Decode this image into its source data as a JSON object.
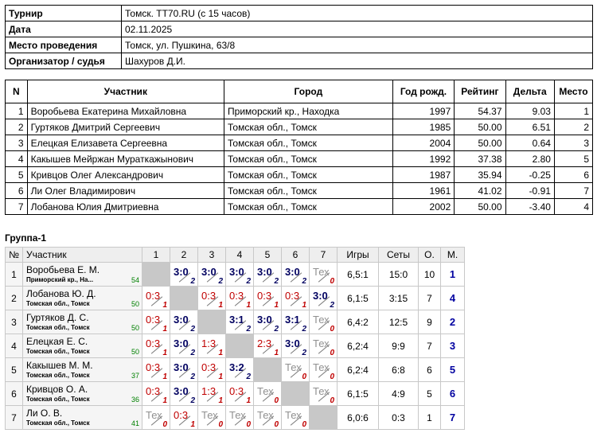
{
  "info": {
    "rows": [
      {
        "label": "Турнир",
        "value": "Томск. TT70.RU (с 15 часов)"
      },
      {
        "label": "Дата",
        "value": "02.11.2025"
      },
      {
        "label": "Место проведения",
        "value": "Томск, ул. Пушкина, 63/8"
      },
      {
        "label": "Организатор / судья",
        "value": "Шахуров Д.И."
      }
    ]
  },
  "participants": {
    "headers": [
      "N",
      "Участник",
      "Город",
      "Год рожд.",
      "Рейтинг",
      "Дельта",
      "Место"
    ],
    "rows": [
      {
        "n": "1",
        "name": "Воробьева Екатерина Михайловна",
        "city": "Приморский кр., Находка",
        "year": "1997",
        "rating": "54.37",
        "delta": "9.03",
        "place": "1"
      },
      {
        "n": "2",
        "name": "Гуртяков Дмитрий Сергеевич",
        "city": "Томская обл., Томск",
        "year": "1985",
        "rating": "50.00",
        "delta": "6.51",
        "place": "2"
      },
      {
        "n": "3",
        "name": "Елецкая Елизавета Сергеевна",
        "city": "Томская обл., Томск",
        "year": "2004",
        "rating": "50.00",
        "delta": "0.64",
        "place": "3"
      },
      {
        "n": "4",
        "name": "Какышев Мейржан Мураткажынович",
        "city": "Томская обл., Томск",
        "year": "1992",
        "rating": "37.38",
        "delta": "2.80",
        "place": "5"
      },
      {
        "n": "5",
        "name": "Кривцов Олег Александрович",
        "city": "Томская обл., Томск",
        "year": "1987",
        "rating": "35.94",
        "delta": "-0.25",
        "place": "6"
      },
      {
        "n": "6",
        "name": "Ли Олег Владимирович",
        "city": "Томская обл., Томск",
        "year": "1961",
        "rating": "41.02",
        "delta": "-0.91",
        "place": "7"
      },
      {
        "n": "7",
        "name": "Лобанова Юлия Дмитриевна",
        "city": "Томская обл., Томск",
        "year": "2002",
        "rating": "50.00",
        "delta": "-3.40",
        "place": "4"
      }
    ]
  },
  "group": {
    "title": "Группа-1",
    "headers": [
      "№",
      "Участник",
      "1",
      "2",
      "3",
      "4",
      "5",
      "6",
      "7",
      "Игры",
      "Сеты",
      "О.",
      "М."
    ],
    "rows": [
      {
        "n": "1",
        "name": "Воробьева Е. М.",
        "city": "Приморский кр., На...",
        "rating": "54",
        "cells": [
          "",
          "3:0|2",
          "3:0|2",
          "3:0|2",
          "3:0|2",
          "3:0|2",
          "Тех|0"
        ],
        "games": "6,5:1",
        "sets": "15:0",
        "points": "10",
        "place": "1"
      },
      {
        "n": "2",
        "name": "Лобанова Ю. Д.",
        "city": "Томская обл., Томск",
        "rating": "50",
        "cells": [
          "0:3|1",
          "",
          "0:3|1",
          "0:3|1",
          "0:3|1",
          "0:3|1",
          "3:0|2"
        ],
        "games": "6,1:5",
        "sets": "3:15",
        "points": "7",
        "place": "4"
      },
      {
        "n": "3",
        "name": "Гуртяков Д. С.",
        "city": "Томская обл., Томск",
        "rating": "50",
        "cells": [
          "0:3|1",
          "3:0|2",
          "",
          "3:1|2",
          "3:0|2",
          "3:1|2",
          "Тех|0"
        ],
        "games": "6,4:2",
        "sets": "12:5",
        "points": "9",
        "place": "2"
      },
      {
        "n": "4",
        "name": "Елецкая Е. С.",
        "city": "Томская обл., Томск",
        "rating": "50",
        "cells": [
          "0:3|1",
          "3:0|2",
          "1:3|1",
          "",
          "2:3|1",
          "3:0|2",
          "Тех|0"
        ],
        "games": "6,2:4",
        "sets": "9:9",
        "points": "7",
        "place": "3"
      },
      {
        "n": "5",
        "name": "Какышев М. М.",
        "city": "Томская обл., Томск",
        "rating": "37",
        "cells": [
          "0:3|1",
          "3:0|2",
          "0:3|1",
          "3:2|2",
          "",
          "Тех|0",
          "Тех|0"
        ],
        "games": "6,2:4",
        "sets": "6:8",
        "points": "6",
        "place": "5"
      },
      {
        "n": "6",
        "name": "Кривцов О. А.",
        "city": "Томская обл., Томск",
        "rating": "36",
        "cells": [
          "0:3|1",
          "3:0|2",
          "1:3|1",
          "0:3|1",
          "Тех|0",
          "",
          "Тех|0"
        ],
        "games": "6,1:5",
        "sets": "4:9",
        "points": "5",
        "place": "6"
      },
      {
        "n": "7",
        "name": "Ли О. В.",
        "city": "Томская обл., Томск",
        "rating": "41",
        "cells": [
          "Тех|0",
          "0:3|1",
          "Тех|0",
          "Тех|0",
          "Тех|0",
          "Тех|0",
          ""
        ],
        "games": "6,0:6",
        "sets": "0:3",
        "points": "1",
        "place": "7"
      }
    ]
  }
}
